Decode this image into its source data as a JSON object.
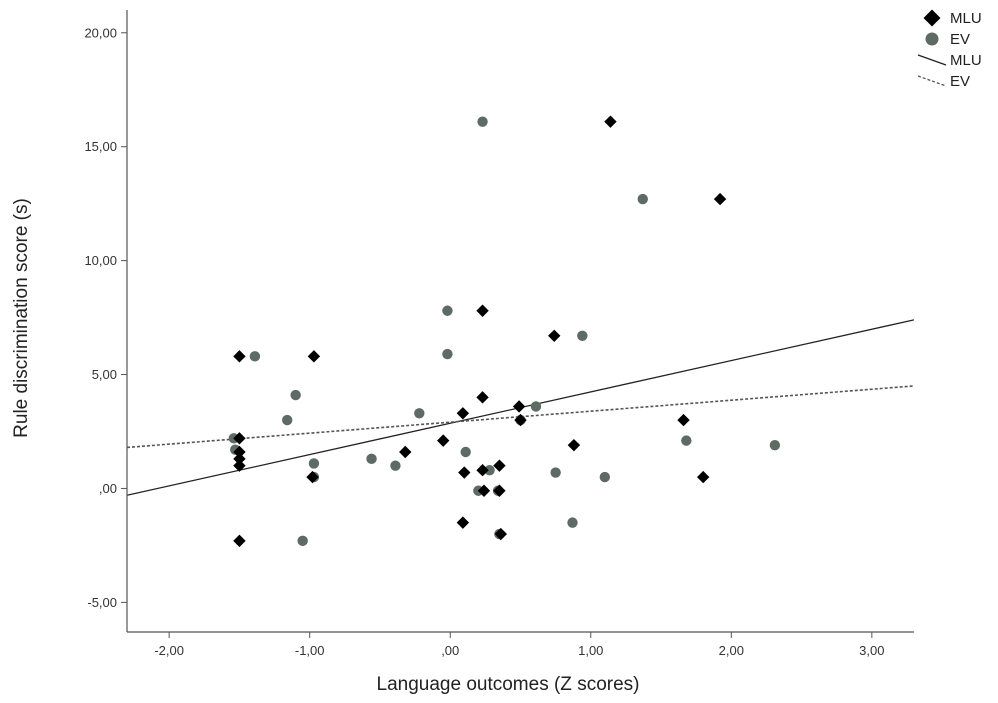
{
  "chart_data": {
    "type": "scatter",
    "xlabel": "Language outcomes (Z scores)",
    "ylabel": "Rule discrimination score (s)",
    "xlim": [
      -2.3,
      3.3
    ],
    "ylim": [
      -6.3,
      21.0
    ],
    "x_ticks": [
      {
        "value": -2,
        "label": "-2,00"
      },
      {
        "value": -1,
        "label": "-1,00"
      },
      {
        "value": 0,
        "label": ",00"
      },
      {
        "value": 1,
        "label": "1,00"
      },
      {
        "value": 2,
        "label": "2,00"
      },
      {
        "value": 3,
        "label": "3,00"
      }
    ],
    "y_ticks": [
      {
        "value": -5,
        "label": "-5,00"
      },
      {
        "value": 0,
        "label": ",00"
      },
      {
        "value": 5,
        "label": "5,00"
      },
      {
        "value": 10,
        "label": "10,00"
      },
      {
        "value": 15,
        "label": "15,00"
      },
      {
        "value": 20,
        "label": "20,00"
      }
    ],
    "grid": false,
    "legend_position": "top-right",
    "series": [
      {
        "name": "MLU",
        "kind": "points",
        "marker": "diamond",
        "color": "#000000",
        "points": [
          {
            "x": -1.5,
            "y": 5.8
          },
          {
            "x": -1.5,
            "y": 2.2
          },
          {
            "x": -1.5,
            "y": 1.6
          },
          {
            "x": -1.5,
            "y": 1.3
          },
          {
            "x": -1.5,
            "y": 1.0
          },
          {
            "x": -1.5,
            "y": -2.3
          },
          {
            "x": -0.97,
            "y": 5.8
          },
          {
            "x": -0.98,
            "y": 0.5
          },
          {
            "x": -0.32,
            "y": 1.6
          },
          {
            "x": -0.05,
            "y": 2.1
          },
          {
            "x": 0.09,
            "y": 3.3
          },
          {
            "x": 0.1,
            "y": 0.7
          },
          {
            "x": 0.09,
            "y": -1.5
          },
          {
            "x": 0.23,
            "y": 7.8
          },
          {
            "x": 0.23,
            "y": 4.0
          },
          {
            "x": 0.23,
            "y": 0.8
          },
          {
            "x": 0.24,
            "y": -0.1
          },
          {
            "x": 0.35,
            "y": 1.0
          },
          {
            "x": 0.35,
            "y": -0.1
          },
          {
            "x": 0.36,
            "y": -2.0
          },
          {
            "x": 0.49,
            "y": 3.6
          },
          {
            "x": 0.5,
            "y": 3.0
          },
          {
            "x": 0.74,
            "y": 6.7
          },
          {
            "x": 0.88,
            "y": 1.9
          },
          {
            "x": 1.14,
            "y": 16.1
          },
          {
            "x": 1.66,
            "y": 3.0
          },
          {
            "x": 1.8,
            "y": 0.5
          },
          {
            "x": 1.92,
            "y": 12.7
          }
        ]
      },
      {
        "name": "EV",
        "kind": "points",
        "marker": "circle",
        "color": "#5e6a64",
        "points": [
          {
            "x": -1.54,
            "y": 2.2
          },
          {
            "x": -1.53,
            "y": 1.7
          },
          {
            "x": -1.39,
            "y": 5.8
          },
          {
            "x": -1.16,
            "y": 3.0
          },
          {
            "x": -1.1,
            "y": 4.1
          },
          {
            "x": -1.05,
            "y": -2.3
          },
          {
            "x": -0.97,
            "y": 1.1
          },
          {
            "x": -0.97,
            "y": 0.5
          },
          {
            "x": -0.56,
            "y": 1.3
          },
          {
            "x": -0.39,
            "y": 1.0
          },
          {
            "x": -0.22,
            "y": 3.3
          },
          {
            "x": -0.02,
            "y": 7.8
          },
          {
            "x": -0.02,
            "y": 5.9
          },
          {
            "x": 0.11,
            "y": 1.6
          },
          {
            "x": 0.2,
            "y": -0.1
          },
          {
            "x": 0.23,
            "y": 16.1
          },
          {
            "x": 0.28,
            "y": 0.8
          },
          {
            "x": 0.34,
            "y": -0.1
          },
          {
            "x": 0.35,
            "y": -2.0
          },
          {
            "x": 0.5,
            "y": 3.0
          },
          {
            "x": 0.61,
            "y": 3.6
          },
          {
            "x": 0.75,
            "y": 0.7
          },
          {
            "x": 0.87,
            "y": -1.5
          },
          {
            "x": 0.94,
            "y": 6.7
          },
          {
            "x": 1.1,
            "y": 0.5
          },
          {
            "x": 1.37,
            "y": 12.7
          },
          {
            "x": 1.68,
            "y": 2.1
          },
          {
            "x": 2.31,
            "y": 1.9
          }
        ]
      },
      {
        "name": "MLU",
        "kind": "fit-line",
        "line_style": "solid",
        "color": "#222222",
        "x": [
          -2.3,
          3.3
        ],
        "y": [
          -0.3,
          7.4
        ]
      },
      {
        "name": "EV",
        "kind": "fit-line",
        "line_style": "dotted",
        "color": "#555555",
        "x": [
          -2.3,
          3.3
        ],
        "y": [
          1.8,
          4.5
        ]
      }
    ]
  }
}
